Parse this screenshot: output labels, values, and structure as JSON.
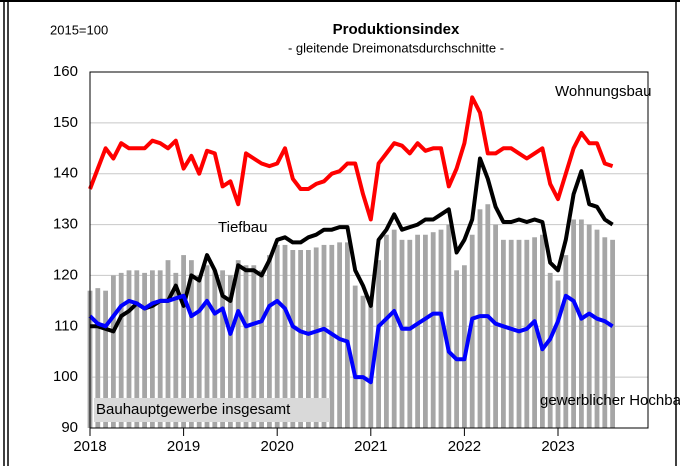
{
  "chart_data": {
    "type": "line",
    "title": "Produktionsindex",
    "subtitle": "- gleitende Dreimonatsdurchschnitte -",
    "unit_label": "2015=100",
    "categories": [
      "2018",
      null,
      null,
      null,
      null,
      null,
      null,
      null,
      null,
      null,
      null,
      null,
      "2019",
      null,
      null,
      null,
      null,
      null,
      null,
      null,
      null,
      null,
      null,
      null,
      "2020",
      null,
      null,
      null,
      null,
      null,
      null,
      null,
      null,
      null,
      null,
      null,
      "2021",
      null,
      null,
      null,
      null,
      null,
      null,
      null,
      null,
      null,
      null,
      null,
      "2022",
      null,
      null,
      null,
      null,
      null,
      null,
      null,
      null,
      null,
      null,
      null,
      "2023",
      null,
      null,
      null,
      null,
      null,
      null,
      null
    ],
    "ylim": [
      90,
      160
    ],
    "yticks": [
      90,
      100,
      110,
      120,
      130,
      140,
      150,
      160
    ],
    "grid": true,
    "series": [
      {
        "name": "Bauhauptgewerbe insgesamt",
        "type": "bar",
        "color": "#a6a6a6",
        "values": [
          117,
          117.5,
          117,
          120,
          120.5,
          121,
          121,
          120.5,
          121,
          121,
          123,
          120.5,
          124,
          123,
          120,
          122,
          121,
          121,
          120,
          123,
          122,
          122,
          121,
          124,
          126,
          126,
          125,
          125,
          125,
          125.5,
          126,
          126,
          126.5,
          126.5,
          118,
          116,
          116,
          123,
          128,
          129,
          127,
          127,
          128,
          128,
          128.5,
          129,
          130,
          121,
          122,
          128,
          133,
          134,
          130,
          127,
          127,
          127,
          127,
          127.5,
          128,
          120.5,
          119,
          124,
          131,
          131,
          130,
          129,
          127.5,
          127
        ]
      },
      {
        "name": "Wohnungsbau",
        "type": "line",
        "color": "#ff0000",
        "values": [
          137,
          141,
          145,
          143,
          146,
          145,
          145,
          145,
          146.5,
          146,
          145,
          146.5,
          141,
          143.5,
          140,
          144.5,
          144,
          137.5,
          138.5,
          134,
          144,
          143,
          142,
          141.5,
          142,
          145,
          139,
          137,
          137,
          138,
          138.5,
          140,
          140.5,
          142,
          142,
          136,
          131,
          142,
          144,
          146,
          145.5,
          144,
          146,
          144.5,
          145,
          145,
          137.5,
          141,
          146,
          155,
          152,
          144,
          144,
          145,
          145,
          144,
          143,
          144,
          145,
          138,
          135,
          140,
          145,
          148,
          146,
          146,
          142,
          141.5
        ]
      },
      {
        "name": "Tiefbau",
        "type": "line",
        "color": "#000000",
        "values": [
          110,
          110,
          109.5,
          109,
          112,
          113,
          114.5,
          113.5,
          114,
          115,
          115,
          118,
          114,
          120,
          119,
          124,
          121,
          116,
          115,
          122,
          121,
          121,
          120,
          123,
          127,
          127.5,
          126.5,
          126.5,
          127.5,
          128,
          129,
          129,
          129.5,
          129.5,
          121,
          118,
          114,
          127,
          129,
          132,
          129,
          129.5,
          130,
          131,
          131,
          132,
          133,
          124.5,
          127,
          131,
          143,
          139,
          133.5,
          130.5,
          130.5,
          131,
          130.5,
          131,
          130.5,
          122.5,
          121,
          127,
          136,
          140.5,
          134,
          133.5,
          131,
          130
        ]
      },
      {
        "name": "gewerblicher Hochbau",
        "type": "line",
        "color": "#0000ff",
        "values": [
          112,
          110.5,
          110,
          112,
          114,
          115,
          114.5,
          113.5,
          114.5,
          115,
          115,
          115.5,
          116,
          112,
          113,
          115,
          112.5,
          113.5,
          108.5,
          113,
          110,
          110.5,
          111,
          114,
          115,
          113.5,
          110,
          109,
          108.5,
          109,
          109.5,
          108.5,
          107.5,
          107,
          100,
          100,
          99,
          110,
          111.5,
          113,
          109.5,
          109.5,
          110.5,
          111.5,
          112.5,
          112.5,
          105,
          103.5,
          103.5,
          111.5,
          112,
          112,
          110.5,
          110,
          109.5,
          109,
          109.5,
          111,
          105.5,
          107.5,
          111,
          116,
          115,
          111.5,
          112.5,
          111.5,
          111,
          110
        ]
      }
    ]
  }
}
